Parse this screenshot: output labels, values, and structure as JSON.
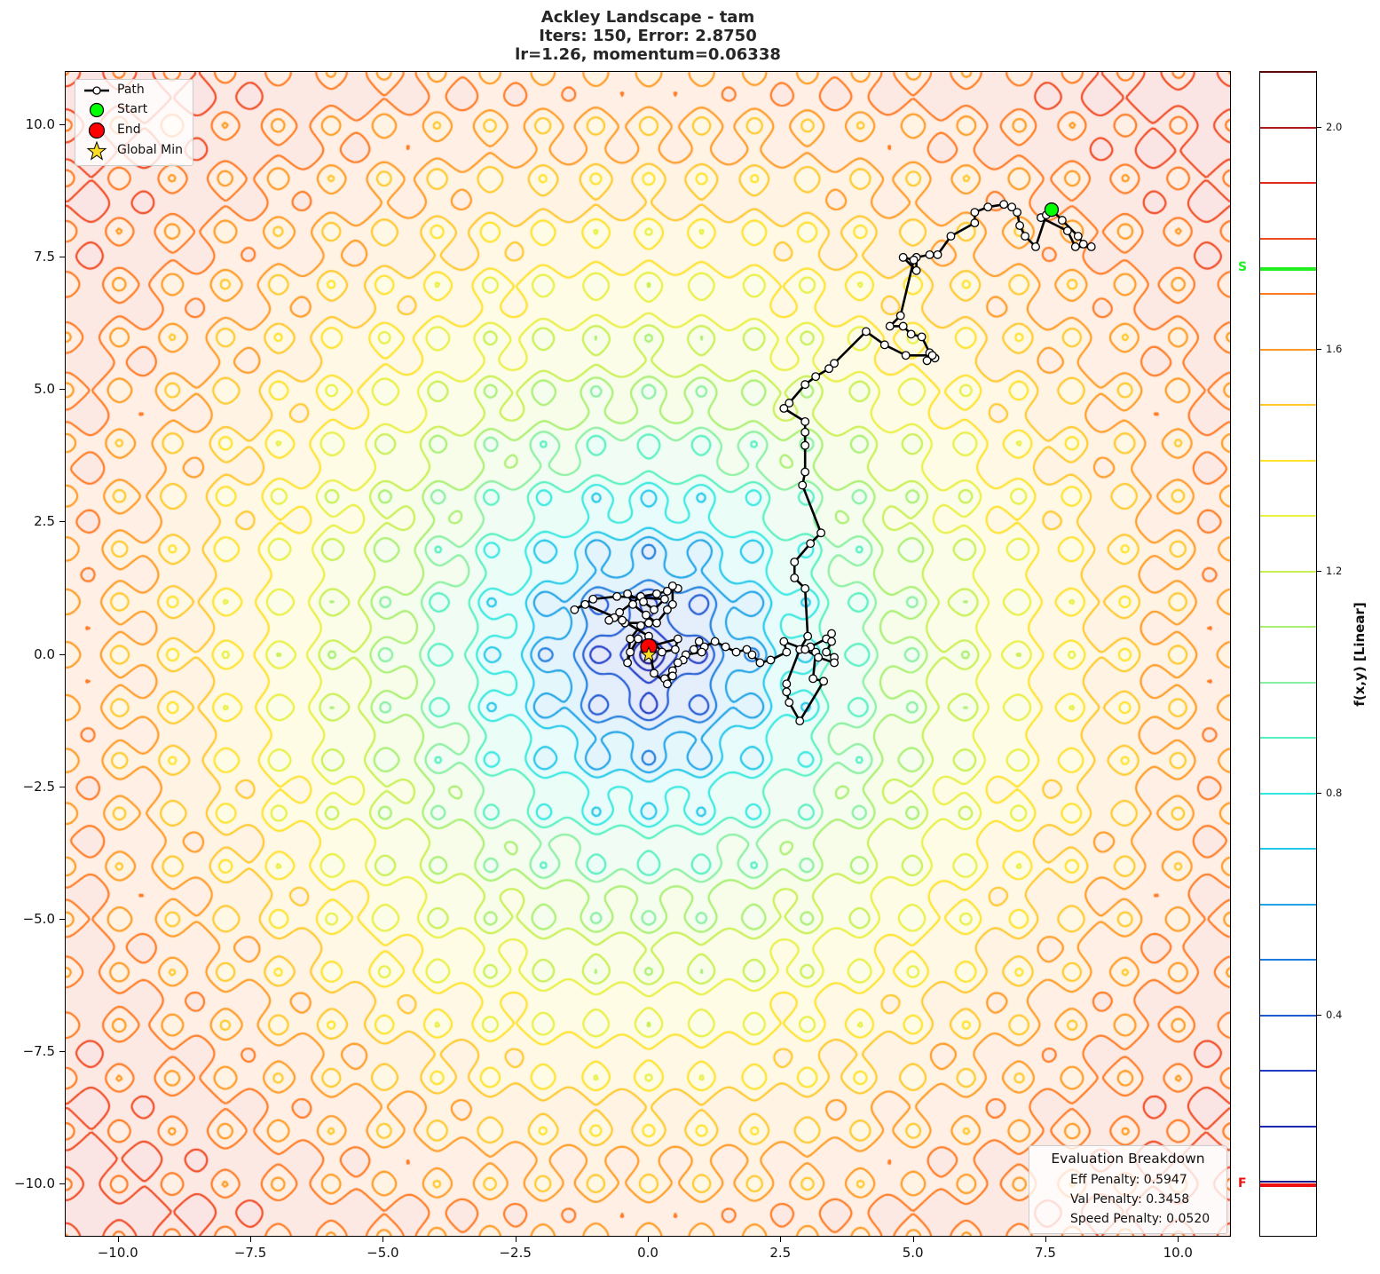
{
  "title": {
    "line1": "Ackley Landscape - tam",
    "line2": "Iters: 150, Error: 2.8750",
    "line3": "lr=1.26, momentum=0.06338"
  },
  "legend": {
    "items": [
      {
        "label": "Path",
        "symbol": "line-circle"
      },
      {
        "label": "Start",
        "symbol": "green-circle",
        "color": "#00ff00"
      },
      {
        "label": "End",
        "symbol": "red-circle",
        "color": "#ff0000"
      },
      {
        "label": "Global Min",
        "symbol": "star",
        "color": "#ffdd22"
      }
    ]
  },
  "evaluation": {
    "title": "Evaluation Breakdown",
    "lines": [
      "Eff Penalty: 0.5947",
      "Val Penalty: 0.3458",
      "Speed Penalty: 0.0520"
    ]
  },
  "colorbar": {
    "label": "f(x,y) [Linear]",
    "ticks": [
      "2.0",
      "1.6",
      "1.2",
      "0.8",
      "0.4"
    ],
    "tick_values": [
      2.0,
      1.6,
      1.2,
      0.8,
      0.4
    ],
    "start_marker": {
      "label": "S",
      "value": 1.745,
      "color": "#22ee22"
    },
    "end_marker": {
      "label": "F",
      "value": 0.095,
      "color": "#ee1111"
    },
    "range": [
      0.0,
      2.1
    ]
  },
  "chart_data": {
    "type": "contour",
    "title": "Ackley Landscape - tam\nIters: 150, Error: 2.8750\nlr=1.26, momentum=0.06338",
    "xlabel": "",
    "ylabel": "",
    "xlim": [
      -11,
      11
    ],
    "ylim": [
      -11,
      11
    ],
    "x_ticks": [
      "-10.0",
      "-7.5",
      "-5.0",
      "-2.5",
      "0.0",
      "2.5",
      "5.0",
      "7.5",
      "10.0"
    ],
    "y_ticks": [
      "10.0",
      "7.5",
      "5.0",
      "2.5",
      "0.0",
      "-2.5",
      "-5.0",
      "-7.5",
      "-10.0"
    ],
    "colorbar_label": "f(x,y) [Linear]",
    "contour_levels": [
      0.1,
      0.2,
      0.3,
      0.4,
      0.5,
      0.6,
      0.7,
      0.8,
      0.9,
      1.0,
      1.1,
      1.2,
      1.3,
      1.4,
      1.5,
      1.6,
      1.7,
      1.8,
      1.9,
      2.0,
      2.1
    ],
    "contour_colors": [
      "#1a1a8c",
      "#1a28b4",
      "#1e3cc8",
      "#1f5ad2",
      "#1e7ddc",
      "#1fa3e6",
      "#22c8ea",
      "#33e8e0",
      "#55f0c0",
      "#88f0a0",
      "#a8f070",
      "#c8f050",
      "#e8f040",
      "#ffe22a",
      "#ffc82a",
      "#ff9a22",
      "#ff7a22",
      "#f04a22",
      "#e02a1e",
      "#b41a1a",
      "#5a0a0a"
    ],
    "start": {
      "x": 7.6,
      "y": 8.4
    },
    "end": {
      "x": 0.0,
      "y": 0.15
    },
    "global_min": {
      "x": 0.0,
      "y": 0.0
    },
    "path_approx": [
      [
        7.6,
        8.4
      ],
      [
        7.8,
        8.2
      ],
      [
        8.1,
        7.9
      ],
      [
        8.2,
        7.75
      ],
      [
        8.35,
        7.7
      ],
      [
        8.05,
        7.7
      ],
      [
        7.9,
        8.0
      ],
      [
        7.4,
        8.25
      ],
      [
        7.5,
        8.3
      ],
      [
        7.3,
        7.7
      ],
      [
        7.1,
        7.9
      ],
      [
        7.0,
        8.1
      ],
      [
        6.95,
        8.35
      ],
      [
        6.85,
        8.45
      ],
      [
        6.7,
        8.5
      ],
      [
        6.4,
        8.45
      ],
      [
        6.15,
        8.35
      ],
      [
        6.15,
        8.15
      ],
      [
        5.7,
        7.9
      ],
      [
        5.45,
        7.55
      ],
      [
        5.3,
        7.55
      ],
      [
        5.05,
        7.5
      ],
      [
        5.05,
        7.25
      ],
      [
        4.8,
        7.5
      ],
      [
        5.0,
        7.45
      ],
      [
        4.75,
        6.4
      ],
      [
        4.55,
        6.2
      ],
      [
        4.8,
        6.2
      ],
      [
        4.95,
        6.05
      ],
      [
        5.15,
        6.0
      ],
      [
        5.3,
        5.7
      ],
      [
        5.25,
        5.55
      ],
      [
        5.4,
        5.6
      ],
      [
        5.35,
        5.65
      ],
      [
        4.85,
        5.65
      ],
      [
        4.45,
        5.85
      ],
      [
        4.1,
        6.1
      ],
      [
        3.5,
        5.5
      ],
      [
        3.4,
        5.4
      ],
      [
        3.15,
        5.25
      ],
      [
        2.95,
        5.1
      ],
      [
        2.65,
        4.75
      ],
      [
        2.55,
        4.65
      ],
      [
        2.95,
        4.4
      ],
      [
        2.95,
        4.2
      ],
      [
        2.95,
        3.95
      ],
      [
        2.95,
        3.45
      ],
      [
        2.9,
        3.2
      ],
      [
        3.25,
        2.3
      ],
      [
        3.05,
        2.1
      ],
      [
        2.75,
        1.75
      ],
      [
        2.75,
        1.45
      ],
      [
        2.95,
        1.25
      ],
      [
        3.0,
        0.35
      ],
      [
        2.85,
        0.1
      ],
      [
        2.6,
        -0.55
      ],
      [
        2.6,
        -0.7
      ],
      [
        2.65,
        -0.9
      ],
      [
        2.85,
        -1.25
      ],
      [
        3.3,
        -0.5
      ],
      [
        3.1,
        -0.45
      ],
      [
        3.15,
        0.05
      ],
      [
        3.05,
        0.15
      ],
      [
        3.35,
        0.3
      ],
      [
        3.45,
        0.4
      ],
      [
        3.45,
        0.25
      ],
      [
        3.35,
        0.05
      ],
      [
        3.5,
        -0.05
      ],
      [
        3.5,
        -0.15
      ],
      [
        3.2,
        -0.05
      ],
      [
        2.95,
        0.1
      ],
      [
        2.55,
        0.25
      ],
      [
        2.6,
        0.05
      ],
      [
        2.3,
        -0.1
      ],
      [
        2.1,
        -0.15
      ],
      [
        1.95,
        0.0
      ],
      [
        1.85,
        0.1
      ],
      [
        1.65,
        0.05
      ],
      [
        1.45,
        0.15
      ],
      [
        1.25,
        0.25
      ],
      [
        1.05,
        0.15
      ],
      [
        0.95,
        0.25
      ],
      [
        0.85,
        0.1
      ],
      [
        1.0,
        0.05
      ],
      [
        0.7,
        0.0
      ],
      [
        0.65,
        -0.1
      ],
      [
        0.55,
        -0.15
      ],
      [
        0.45,
        -0.3
      ],
      [
        0.3,
        -0.45
      ],
      [
        0.45,
        -0.4
      ],
      [
        0.35,
        -0.55
      ],
      [
        0.1,
        -0.35
      ],
      [
        0.0,
        0.15
      ],
      [
        -0.2,
        0.3
      ],
      [
        -0.35,
        0.05
      ],
      [
        -0.4,
        -0.15
      ],
      [
        -0.35,
        0.3
      ],
      [
        -0.15,
        0.55
      ],
      [
        0.0,
        0.6
      ],
      [
        -0.45,
        0.6
      ],
      [
        -0.65,
        0.7
      ],
      [
        -0.75,
        0.65
      ],
      [
        -0.55,
        0.8
      ],
      [
        -0.15,
        1.1
      ],
      [
        0.15,
        1.15
      ],
      [
        0.35,
        1.2
      ],
      [
        0.55,
        1.25
      ],
      [
        0.45,
        1.3
      ],
      [
        0.45,
        0.95
      ],
      [
        0.35,
        0.85
      ],
      [
        0.15,
        0.6
      ],
      [
        -0.05,
        0.75
      ],
      [
        -0.3,
        0.95
      ],
      [
        -0.4,
        1.15
      ],
      [
        -0.1,
        1.0
      ],
      [
        0.1,
        0.85
      ],
      [
        0.3,
        1.05
      ],
      [
        -0.6,
        1.1
      ],
      [
        -1.05,
        1.05
      ],
      [
        -1.4,
        0.85
      ],
      [
        -1.2,
        0.95
      ],
      [
        -0.5,
        0.65
      ],
      [
        0.0,
        0.35
      ],
      [
        0.25,
        0.05
      ],
      [
        0.5,
        0.1
      ],
      [
        0.55,
        0.3
      ],
      [
        0.0,
        0.15
      ]
    ]
  }
}
